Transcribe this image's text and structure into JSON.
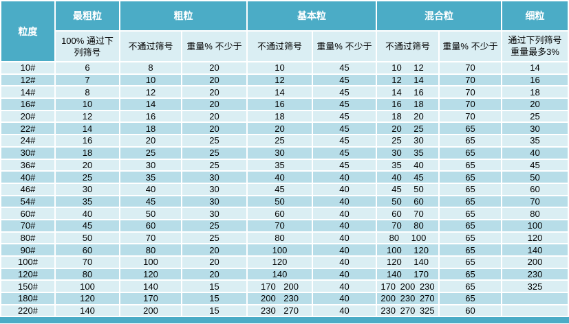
{
  "colors": {
    "header_teal": "#4BACC6",
    "band_light": "#DAEEF3",
    "band_dark": "#B7DDE8",
    "gridline": "#FFFFFF",
    "header_text": "#FFFFFF",
    "body_text": "#000000"
  },
  "table": {
    "corner": "粒度",
    "groups": [
      {
        "label": "最粗粒",
        "subs": [
          "100% 通过下列筛号"
        ]
      },
      {
        "label": "粗粒",
        "subs": [
          "不通过筛号",
          "重量% 不少于"
        ]
      },
      {
        "label": "基本粒",
        "subs": [
          "不通过筛号",
          "重量% 不少于"
        ]
      },
      {
        "label": "混合粒",
        "subs": [
          "不通过筛号",
          "重量% 不少于"
        ]
      },
      {
        "label": "细粒",
        "subs": [
          "通过下列筛号重量最多3%"
        ]
      }
    ],
    "rows": [
      {
        "size": "10#",
        "values": [
          "6",
          "8",
          "20",
          "10",
          "45",
          "10 12",
          "70",
          "14"
        ]
      },
      {
        "size": "12#",
        "values": [
          "7",
          "10",
          "20",
          "12",
          "45",
          "12 14",
          "70",
          "16"
        ]
      },
      {
        "size": "14#",
        "values": [
          "8",
          "12",
          "20",
          "14",
          "45",
          "14 16",
          "70",
          "18"
        ]
      },
      {
        "size": "16#",
        "values": [
          "10",
          "14",
          "20",
          "16",
          "45",
          "16 18",
          "70",
          "20"
        ]
      },
      {
        "size": "20#",
        "values": [
          "12",
          "16",
          "20",
          "18",
          "45",
          "18 20",
          "70",
          "25"
        ]
      },
      {
        "size": "22#",
        "values": [
          "14",
          "18",
          "20",
          "20",
          "45",
          "20 25",
          "65",
          "30"
        ]
      },
      {
        "size": "24#",
        "values": [
          "16",
          "20",
          "25",
          "25",
          "45",
          "25 30",
          "65",
          "35"
        ]
      },
      {
        "size": "30#",
        "values": [
          "18",
          "25",
          "25",
          "30",
          "45",
          "30 35",
          "65",
          "40"
        ]
      },
      {
        "size": "36#",
        "values": [
          "20",
          "30",
          "25",
          "35",
          "45",
          "35 40",
          "65",
          "45"
        ]
      },
      {
        "size": "40#",
        "values": [
          "25",
          "35",
          "30",
          "40",
          "40",
          "40 45",
          "65",
          "50"
        ]
      },
      {
        "size": "46#",
        "values": [
          "30",
          "40",
          "30",
          "45",
          "40",
          "45 50",
          "65",
          "60"
        ]
      },
      {
        "size": "54#",
        "values": [
          "35",
          "45",
          "30",
          "50",
          "40",
          "50 60",
          "65",
          "70"
        ]
      },
      {
        "size": "60#",
        "values": [
          "40",
          "50",
          "30",
          "60",
          "40",
          "60 70",
          "65",
          "80"
        ]
      },
      {
        "size": "70#",
        "values": [
          "45",
          "60",
          "25",
          "70",
          "40",
          "70 80",
          "65",
          "100"
        ]
      },
      {
        "size": "80#",
        "values": [
          "50",
          "70",
          "25",
          "80",
          "40",
          "80 100",
          "65",
          "120"
        ]
      },
      {
        "size": "90#",
        "values": [
          "60",
          "80",
          "20",
          "100",
          "40",
          "100 120",
          "65",
          "140"
        ]
      },
      {
        "size": "100#",
        "values": [
          "70",
          "100",
          "20",
          "120",
          "40",
          "120 140",
          "65",
          "200"
        ]
      },
      {
        "size": "120#",
        "values": [
          "80",
          "120",
          "20",
          "140",
          "40",
          "140 170",
          "65",
          "230"
        ]
      },
      {
        "size": "150#",
        "values": [
          "100",
          "140",
          "15",
          "170 200",
          "40",
          "170 200 230",
          "65",
          "325"
        ]
      },
      {
        "size": "180#",
        "values": [
          "120",
          "170",
          "15",
          "200 230",
          "40",
          "200 230 270",
          "65",
          ""
        ]
      },
      {
        "size": "220#",
        "values": [
          "140",
          "200",
          "15",
          "230 270",
          "40",
          "230 270 325",
          "60",
          ""
        ]
      }
    ]
  }
}
